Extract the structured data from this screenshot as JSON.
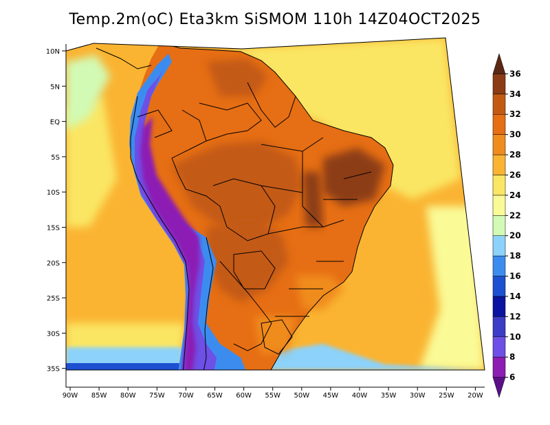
{
  "title": "Temp.2m(oC) Eta3km SiSMOM 110h 14Z04OCT2025",
  "lat_ticks": [
    "10N",
    "5N",
    "EQ",
    "5S",
    "10S",
    "15S",
    "20S",
    "25S",
    "30S",
    "35S"
  ],
  "lon_ticks": [
    "90W",
    "85W",
    "80W",
    "75W",
    "70W",
    "65W",
    "60W",
    "55W",
    "50W",
    "45W",
    "40W",
    "35W",
    "30W",
    "25W",
    "20W"
  ],
  "colorbar": {
    "labels": [
      "6",
      "8",
      "10",
      "12",
      "14",
      "16",
      "18",
      "20",
      "22",
      "24",
      "26",
      "28",
      "30",
      "32",
      "34",
      "36"
    ],
    "colors": [
      "#5a0f87",
      "#8c1eb4",
      "#6e50e6",
      "#3c3cc8",
      "#0a14a0",
      "#1e50d2",
      "#3c8cf0",
      "#8cd2fa",
      "#d2fab4",
      "#fafa96",
      "#fae664",
      "#fab432",
      "#f08c1e",
      "#e66e14",
      "#c35a14",
      "#8c3c14",
      "#5a2814"
    ]
  }
}
